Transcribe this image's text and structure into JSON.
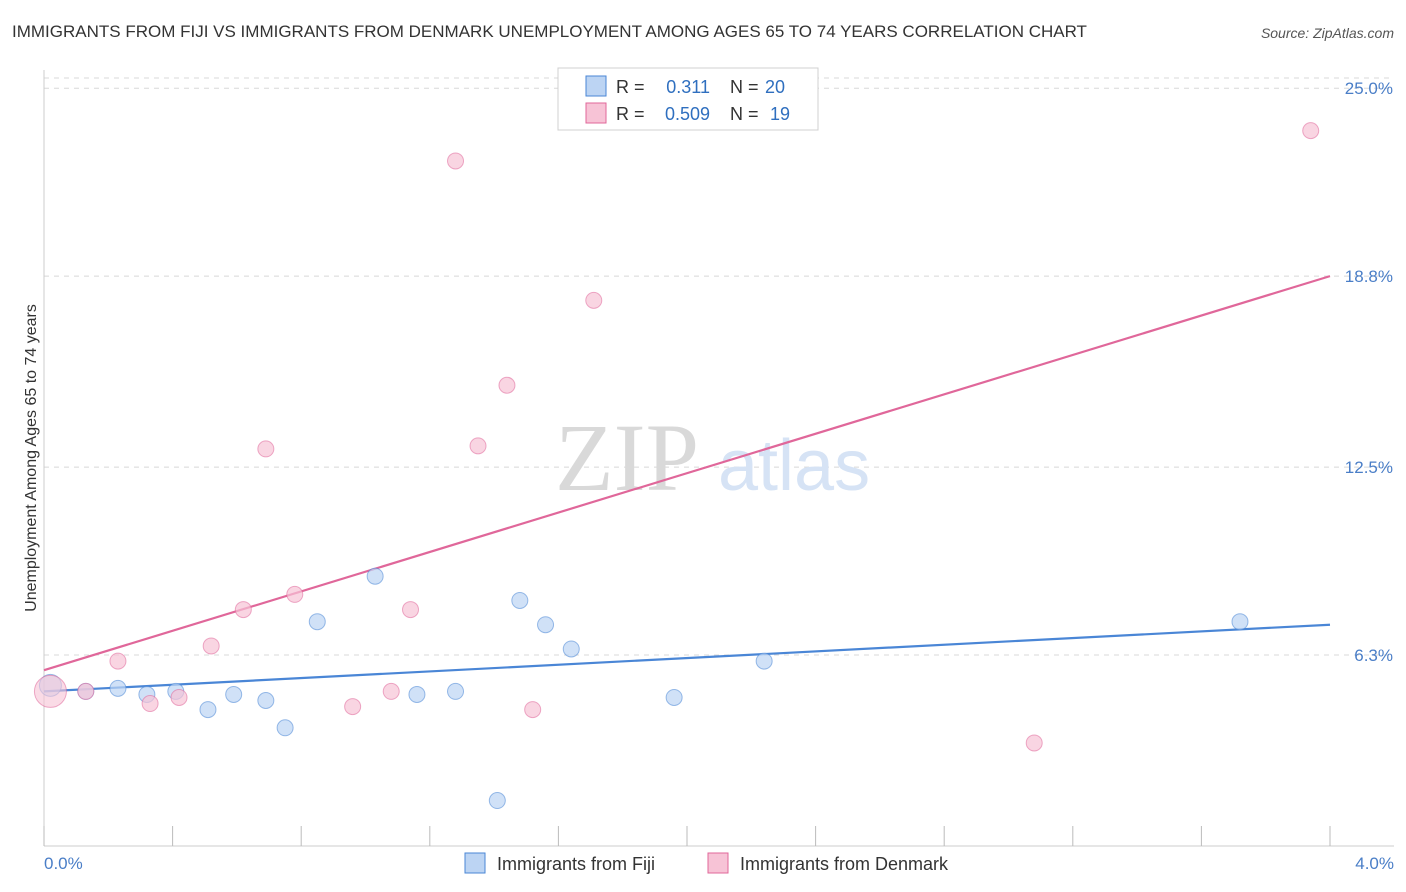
{
  "title": "IMMIGRANTS FROM FIJI VS IMMIGRANTS FROM DENMARK UNEMPLOYMENT AMONG AGES 65 TO 74 YEARS CORRELATION CHART",
  "source": "Source: ZipAtlas.com",
  "watermark": {
    "zip": "ZIP",
    "atlas": "atlas"
  },
  "colors": {
    "fiji": "#4a86d6",
    "fiji_fill": "#bcd4f3",
    "denmark": "#e0679a",
    "denmark_fill": "#f7c3d6",
    "grid": "#d8d8d8",
    "tick_text": "#4a7ec7"
  },
  "legend": {
    "r_label": "R =",
    "n_label": "N =",
    "rows": [
      {
        "r": "0.311",
        "n": "20"
      },
      {
        "r": "0.509",
        "n": "19"
      }
    ]
  },
  "chart_data": {
    "type": "scatter",
    "title": "IMMIGRANTS FROM FIJI VS IMMIGRANTS FROM DENMARK UNEMPLOYMENT AMONG AGES 65 TO 74 YEARS CORRELATION CHART",
    "xlabel": "",
    "ylabel": "Unemployment Among Ages 65 to 74 years",
    "xlim": [
      0,
      4.0
    ],
    "ylim": [
      0,
      25.6
    ],
    "x_tick_labels": [
      "0.0%",
      "4.0%"
    ],
    "y_ticks": [
      6.3,
      12.5,
      18.8,
      25.0
    ],
    "y_tick_labels": [
      "6.3%",
      "12.5%",
      "18.8%",
      "25.0%"
    ],
    "series": [
      {
        "name": "Immigrants from Fiji",
        "points": [
          {
            "x": 0.02,
            "y": 5.3
          },
          {
            "x": 0.13,
            "y": 5.1
          },
          {
            "x": 0.23,
            "y": 5.2
          },
          {
            "x": 0.32,
            "y": 5.0
          },
          {
            "x": 0.41,
            "y": 5.1
          },
          {
            "x": 0.51,
            "y": 4.5
          },
          {
            "x": 0.59,
            "y": 5.0
          },
          {
            "x": 0.69,
            "y": 4.8
          },
          {
            "x": 0.75,
            "y": 3.9
          },
          {
            "x": 0.85,
            "y": 7.4
          },
          {
            "x": 1.03,
            "y": 8.9
          },
          {
            "x": 1.16,
            "y": 5.0
          },
          {
            "x": 1.28,
            "y": 5.1
          },
          {
            "x": 1.41,
            "y": 1.5
          },
          {
            "x": 1.48,
            "y": 8.1
          },
          {
            "x": 1.56,
            "y": 7.3
          },
          {
            "x": 1.64,
            "y": 6.5
          },
          {
            "x": 1.96,
            "y": 4.9
          },
          {
            "x": 2.24,
            "y": 6.1
          },
          {
            "x": 3.72,
            "y": 7.4
          }
        ],
        "trend": {
          "x": [
            0,
            4.0
          ],
          "y": [
            5.1,
            7.3
          ]
        }
      },
      {
        "name": "Immigrants from Denmark",
        "points": [
          {
            "x": 0.02,
            "y": 5.1
          },
          {
            "x": 0.13,
            "y": 5.1
          },
          {
            "x": 0.23,
            "y": 6.1
          },
          {
            "x": 0.33,
            "y": 4.7
          },
          {
            "x": 0.42,
            "y": 4.9
          },
          {
            "x": 0.52,
            "y": 6.6
          },
          {
            "x": 0.62,
            "y": 7.8
          },
          {
            "x": 0.69,
            "y": 13.1
          },
          {
            "x": 0.78,
            "y": 8.3
          },
          {
            "x": 0.96,
            "y": 4.6
          },
          {
            "x": 1.08,
            "y": 5.1
          },
          {
            "x": 1.14,
            "y": 7.8
          },
          {
            "x": 1.28,
            "y": 22.6
          },
          {
            "x": 1.35,
            "y": 13.2
          },
          {
            "x": 1.44,
            "y": 15.2
          },
          {
            "x": 1.52,
            "y": 4.5
          },
          {
            "x": 1.71,
            "y": 18.0
          },
          {
            "x": 3.08,
            "y": 3.4
          },
          {
            "x": 3.94,
            "y": 23.6
          }
        ],
        "trend": {
          "x": [
            0,
            4.0
          ],
          "y": [
            5.8,
            18.8
          ]
        }
      }
    ]
  }
}
